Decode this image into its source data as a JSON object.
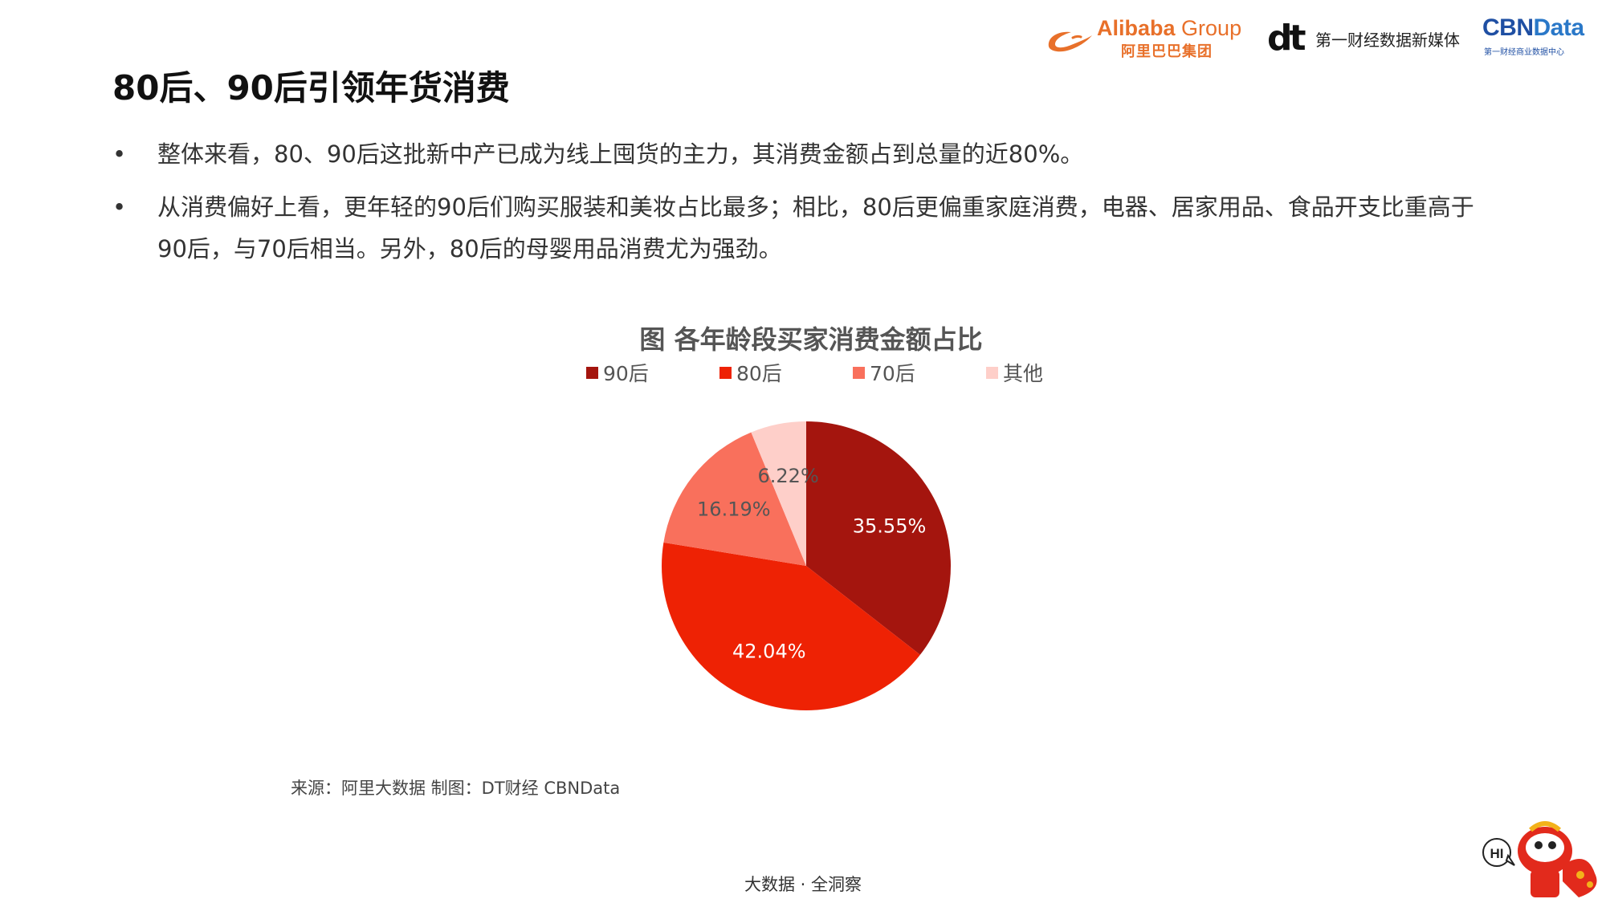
{
  "header": {
    "alibaba_name": "Alibaba",
    "alibaba_group": "Group",
    "alibaba_cn": "阿里巴巴集团",
    "dt_mark": "dt",
    "dt_name": "第一财经数据新媒体",
    "cbn_name_a": "CBN",
    "cbn_name_b": "Data",
    "cbn_sub": "第一财经商业数据中心"
  },
  "page_title": "80后、90后引领年货消费",
  "bullets": [
    {
      "marker": "•",
      "text": "整体来看，80、90后这批新中产已成为线上囤货的主力，其消费金额占到总量的近80%。"
    },
    {
      "marker": "•",
      "text": "从消费偏好上看，更年轻的90后们购买服装和美妆占比最多；相比，80后更偏重家庭消费，电器、居家用品、食品开支比重高于90后，与70后相当。另外，80后的母婴用品消费尤为强劲。"
    }
  ],
  "chart_data": {
    "type": "pie",
    "title": "图 各年龄段买家消费金额占比",
    "legend_position": "top",
    "categories": [
      "90后",
      "80后",
      "70后",
      "其他"
    ],
    "values": [
      35.55,
      42.04,
      16.19,
      6.22
    ],
    "data_labels": [
      "35.55%",
      "42.04%",
      "16.19%",
      "6.22%"
    ],
    "colors": [
      "#a4150e",
      "#ee2204",
      "#f9705c",
      "#fecfc9"
    ],
    "label_colors": [
      "#ffffff",
      "#ffffff",
      "#555555",
      "#555555"
    ],
    "start_angle_deg": 0,
    "direction": "clockwise"
  },
  "source_text": "来源：阿里大数据   制图：DT财经    CBNData",
  "footer_text": "大数据 · 全洞察",
  "mascot": {
    "bubble_text": "HI",
    "icon": "lion-dance-mascot-icon"
  }
}
